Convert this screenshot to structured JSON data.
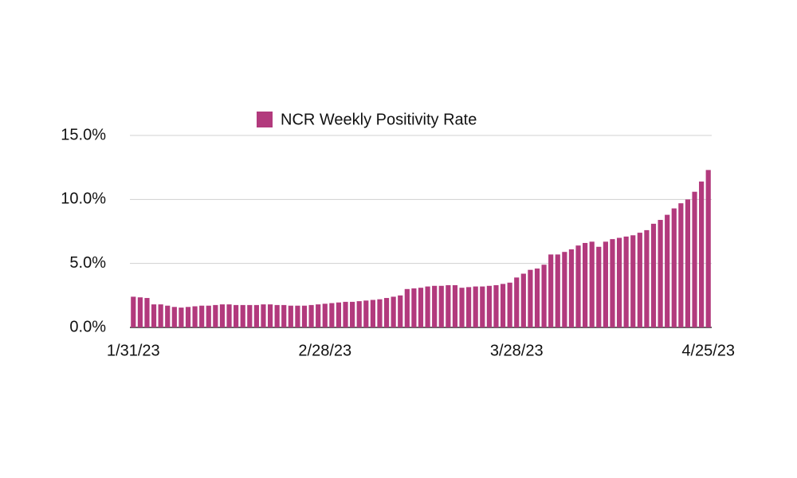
{
  "chart_data": {
    "type": "bar",
    "series": [
      {
        "name": "NCR Weekly Positivity Rate",
        "color": "#b23a7d",
        "values": [
          2.4,
          2.35,
          2.3,
          1.8,
          1.8,
          1.7,
          1.6,
          1.55,
          1.6,
          1.65,
          1.7,
          1.7,
          1.75,
          1.8,
          1.8,
          1.75,
          1.75,
          1.75,
          1.75,
          1.8,
          1.8,
          1.75,
          1.75,
          1.7,
          1.7,
          1.7,
          1.75,
          1.8,
          1.85,
          1.9,
          1.95,
          2.0,
          2.0,
          2.05,
          2.1,
          2.15,
          2.2,
          2.3,
          2.4,
          2.5,
          3.0,
          3.05,
          3.1,
          3.2,
          3.25,
          3.25,
          3.3,
          3.3,
          3.1,
          3.15,
          3.2,
          3.2,
          3.25,
          3.3,
          3.4,
          3.5,
          3.9,
          4.2,
          4.5,
          4.6,
          4.9,
          5.7,
          5.7,
          5.9,
          6.1,
          6.4,
          6.6,
          6.7,
          6.3,
          6.7,
          6.9,
          7.0,
          7.1,
          7.2,
          7.4,
          7.6,
          8.1,
          8.4,
          8.8,
          9.3,
          9.7,
          10.0,
          10.6,
          11.4,
          12.3
        ]
      }
    ],
    "categories": [
      "1/31/23",
      null,
      null,
      null,
      null,
      null,
      null,
      null,
      null,
      null,
      null,
      null,
      null,
      null,
      null,
      null,
      null,
      null,
      null,
      null,
      null,
      null,
      null,
      null,
      null,
      null,
      null,
      null,
      "2/28/23",
      null,
      null,
      null,
      null,
      null,
      null,
      null,
      null,
      null,
      null,
      null,
      null,
      null,
      null,
      null,
      null,
      null,
      null,
      null,
      null,
      null,
      null,
      null,
      null,
      null,
      null,
      null,
      "3/28/23",
      null,
      null,
      null,
      null,
      null,
      null,
      null,
      null,
      null,
      null,
      null,
      null,
      null,
      null,
      null,
      null,
      null,
      null,
      null,
      null,
      null,
      null,
      null,
      null,
      null,
      null,
      null,
      "4/25/23"
    ],
    "ylim": [
      0,
      15
    ],
    "yticks": [
      {
        "value": 0,
        "label": "0.0%"
      },
      {
        "value": 5,
        "label": "5.0%"
      },
      {
        "value": 10,
        "label": "10.0%"
      },
      {
        "value": 15,
        "label": "15.0%"
      }
    ],
    "grid": true,
    "legend": "top"
  }
}
